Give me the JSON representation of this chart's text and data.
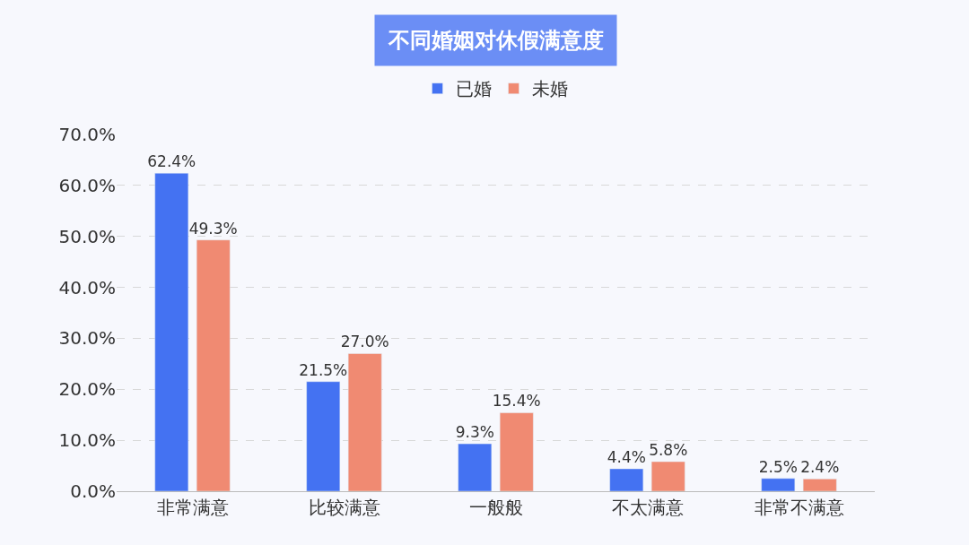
{
  "chart_data": {
    "type": "bar",
    "title": "不同婚姻对休假满意度",
    "categories": [
      "非常满意",
      "比较满意",
      "一般般",
      "不太满意",
      "非常不满意"
    ],
    "series": [
      {
        "name": "已婚",
        "color": "#4472f2",
        "values": [
          62.4,
          21.5,
          9.3,
          4.4,
          2.5
        ],
        "value_labels": [
          "62.4%",
          "21.5%",
          "9.3%",
          "4.4%",
          "2.5%"
        ]
      },
      {
        "name": "未婚",
        "color": "#f08a72",
        "values": [
          49.3,
          27.0,
          15.4,
          5.8,
          2.4
        ],
        "value_labels": [
          "49.3%",
          "27.0%",
          "15.4%",
          "5.8%",
          "2.4%"
        ]
      }
    ],
    "ylim": [
      0,
      70
    ],
    "yticks": [
      {
        "value": 0,
        "label": "0.0%"
      },
      {
        "value": 10,
        "label": "10.0%"
      },
      {
        "value": 20,
        "label": "20.0%"
      },
      {
        "value": 30,
        "label": "30.0%"
      },
      {
        "value": 40,
        "label": "40.0%"
      },
      {
        "value": 50,
        "label": "50.0%"
      },
      {
        "value": 60,
        "label": "60.0%"
      },
      {
        "value": 70,
        "label": "70.0%"
      }
    ],
    "grid": "y",
    "legend": "top"
  }
}
